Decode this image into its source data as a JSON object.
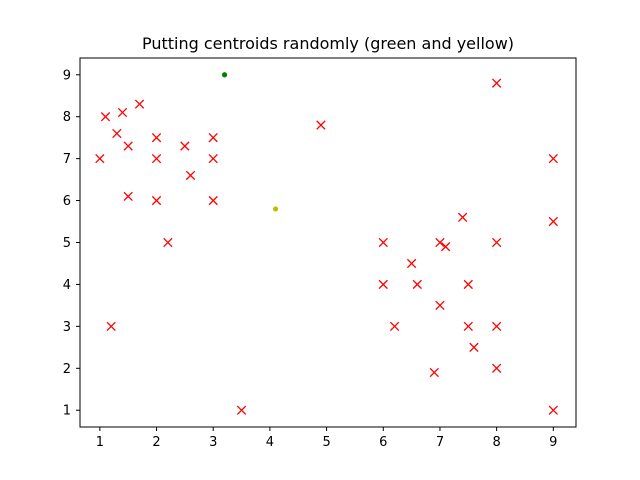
{
  "chart_data": {
    "type": "scatter",
    "title": "Putting centroids randomly (green and yellow)",
    "xlabel": "",
    "ylabel": "",
    "xlim": [
      0.65,
      9.4
    ],
    "ylim": [
      0.6,
      9.4
    ],
    "xticks": [
      1,
      2,
      3,
      4,
      5,
      6,
      7,
      8,
      9
    ],
    "yticks": [
      1,
      2,
      3,
      4,
      5,
      6,
      7,
      8,
      9
    ],
    "grid": false,
    "series": [
      {
        "marker": "x",
        "color": "#ff0000",
        "points": [
          [
            1.0,
            7.0
          ],
          [
            1.1,
            8.0
          ],
          [
            1.2,
            3.0
          ],
          [
            1.3,
            7.6
          ],
          [
            1.4,
            8.1
          ],
          [
            1.5,
            7.3
          ],
          [
            1.5,
            6.1
          ],
          [
            1.7,
            8.3
          ],
          [
            2.0,
            7.5
          ],
          [
            2.0,
            7.0
          ],
          [
            2.0,
            6.0
          ],
          [
            2.2,
            5.0
          ],
          [
            2.5,
            7.3
          ],
          [
            2.6,
            6.6
          ],
          [
            3.0,
            7.5
          ],
          [
            3.0,
            7.0
          ],
          [
            3.0,
            6.0
          ],
          [
            3.5,
            1.0
          ],
          [
            4.9,
            7.8
          ],
          [
            6.0,
            5.0
          ],
          [
            6.0,
            4.0
          ],
          [
            6.2,
            3.0
          ],
          [
            6.5,
            4.5
          ],
          [
            6.6,
            4.0
          ],
          [
            6.9,
            1.9
          ],
          [
            7.0,
            5.0
          ],
          [
            7.1,
            4.9
          ],
          [
            7.0,
            3.5
          ],
          [
            7.4,
            5.6
          ],
          [
            7.5,
            4.0
          ],
          [
            7.5,
            3.0
          ],
          [
            7.6,
            2.5
          ],
          [
            8.0,
            8.8
          ],
          [
            8.0,
            5.0
          ],
          [
            8.0,
            3.0
          ],
          [
            8.0,
            2.0
          ],
          [
            9.0,
            7.0
          ],
          [
            9.0,
            5.5
          ],
          [
            9.0,
            1.0
          ]
        ]
      },
      {
        "marker": "dot",
        "color": "#008000",
        "points": [
          [
            3.2,
            9.0
          ]
        ]
      },
      {
        "marker": "dot",
        "color": "#bfbf00",
        "points": [
          [
            4.1,
            5.8
          ]
        ]
      }
    ]
  }
}
